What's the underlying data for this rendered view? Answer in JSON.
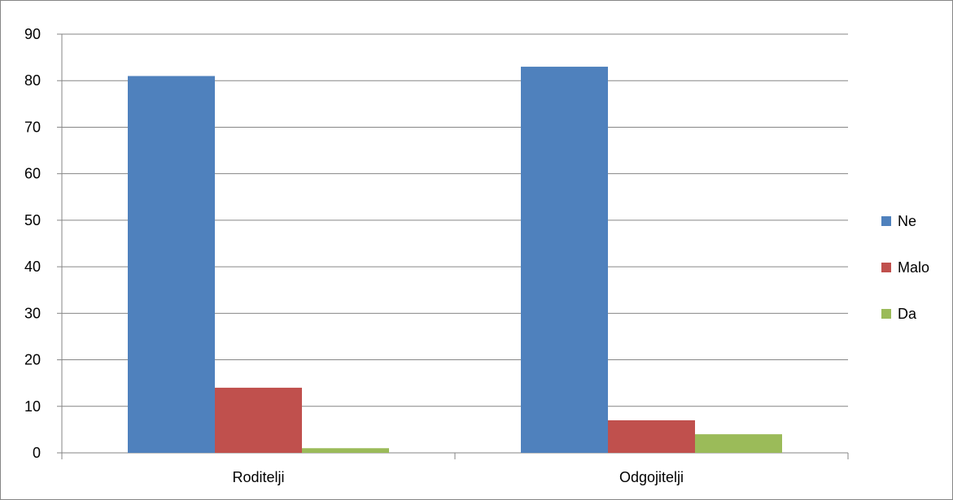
{
  "chart_data": {
    "type": "bar",
    "categories": [
      "Roditelji",
      "Odgojitelji"
    ],
    "series": [
      {
        "name": "Ne",
        "values": [
          81,
          83
        ],
        "color": "#4F81BD"
      },
      {
        "name": "Malo",
        "values": [
          14,
          7
        ],
        "color": "#C0504D"
      },
      {
        "name": "Da",
        "values": [
          1,
          4
        ],
        "color": "#9BBB59"
      }
    ],
    "yticks": [
      "0",
      "10",
      "20",
      "30",
      "40",
      "50",
      "60",
      "70",
      "80",
      "90"
    ],
    "ylim": [
      0,
      90
    ],
    "grid": true,
    "legend_position": "right",
    "title": "",
    "xlabel": "",
    "ylabel": ""
  }
}
